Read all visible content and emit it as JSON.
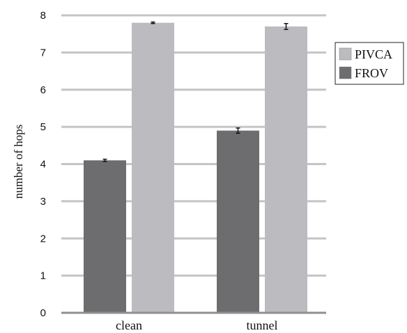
{
  "chart_data": {
    "type": "bar",
    "categories": [
      "clean",
      "tunnel"
    ],
    "series": [
      {
        "name": "FROV",
        "values": [
          4.1,
          4.9
        ],
        "errors": [
          0.03,
          0.07
        ],
        "color": "#6d6d70"
      },
      {
        "name": "PIVCA",
        "values": [
          7.8,
          7.7
        ],
        "errors": [
          0.02,
          0.08
        ],
        "color": "#bcbcc0"
      }
    ],
    "ylabel": "number of hops",
    "xlabel": "",
    "ylim": [
      0,
      8
    ],
    "yticks": [
      0,
      1,
      2,
      3,
      4,
      5,
      6,
      7,
      8
    ],
    "grid": true,
    "legend_position": "right",
    "legend_order": [
      "PIVCA",
      "FROV"
    ]
  }
}
